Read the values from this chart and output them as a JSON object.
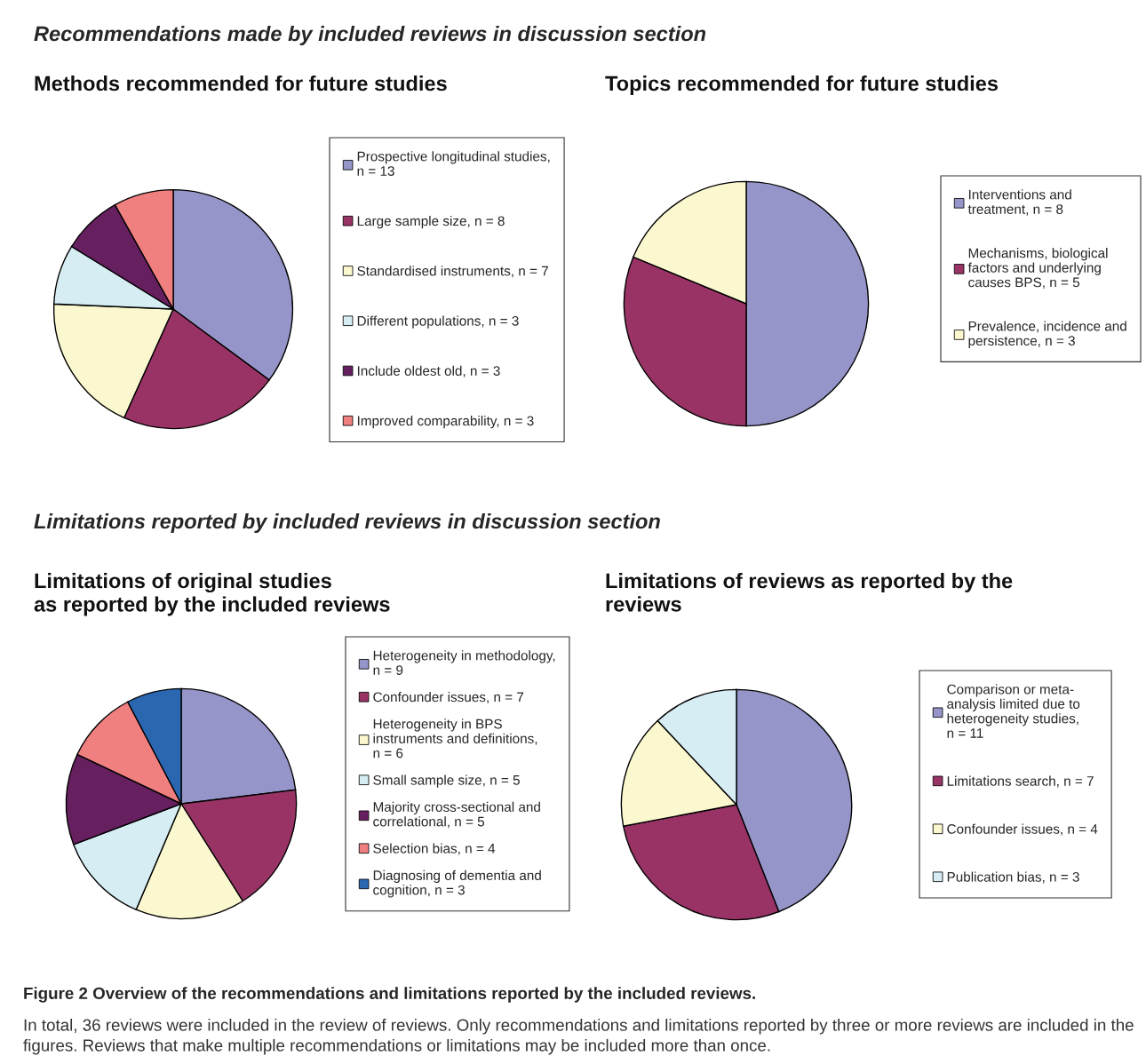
{
  "chart_data": [
    {
      "type": "pie",
      "title": "Methods recommended for future studies",
      "legend": "right",
      "annotations": [
        "Recommendations made by included reviews in discussion section"
      ],
      "categories": [
        "Prospective longitudinal studies,\nn = 13",
        "Large sample size, n = 8",
        "Standardised instruments, n = 7",
        "Different populations, n = 3",
        "Include oldest old, n = 3",
        "Improved comparability, n = 3"
      ],
      "values": [
        13,
        8,
        7,
        3,
        3,
        3
      ],
      "colors": [
        "#9595c9",
        "#993366",
        "#fbf8cf",
        "#d5edf3",
        "#661f5f",
        "#f08080"
      ]
    },
    {
      "type": "pie",
      "title": "Topics recommended for future studies",
      "legend": "right",
      "categories": [
        "Interventions and\ntreatment, n = 8",
        "Mechanisms, biological\nfactors and underlying\ncauses BPS, n = 5",
        "Prevalence, incidence and\npersistence, n = 3"
      ],
      "values": [
        8,
        5,
        3
      ],
      "colors": [
        "#9595c9",
        "#993366",
        "#fbf8cf"
      ]
    },
    {
      "type": "pie",
      "title": "Limitations of original studies\nas reported by the included reviews",
      "legend": "right",
      "annotations": [
        "Limitations reported by included reviews in discussion section"
      ],
      "categories": [
        "Heterogeneity in methodology,\nn = 9",
        "Confounder issues, n = 7",
        "Heterogeneity in BPS\ninstruments and definitions,\nn = 6",
        "Small sample size, n = 5",
        "Majority cross-sectional and\ncorrelational, n = 5",
        "Selection bias, n = 4",
        "Diagnosing of dementia and\ncognition, n = 3"
      ],
      "values": [
        9,
        7,
        6,
        5,
        5,
        4,
        3
      ],
      "colors": [
        "#9595c9",
        "#993366",
        "#fbf8cf",
        "#d5edf3",
        "#661f5f",
        "#f08080",
        "#2b66b1"
      ]
    },
    {
      "type": "pie",
      "title": "Limitations of reviews as reported by the\nreviews",
      "legend": "right",
      "annotations": [
        "Figure 2 Overview of the recommendations and limitations reported by the included reviews.",
        "In total, 36 reviews were included in the review of reviews. Only recommendations and limitations reported by three or more reviews are included in the figures. Reviews that make multiple recommendations or limitations may be included more than once."
      ],
      "categories": [
        "Comparison or meta-\nanalysis limited due to\nheterogeneity studies,\nn = 11",
        "Limitations search, n = 7",
        "Confounder issues, n = 4",
        "Publication bias, n = 3"
      ],
      "values": [
        11,
        7,
        4,
        3
      ],
      "colors": [
        "#9595c9",
        "#993366",
        "#fbf8cf",
        "#d5edf3"
      ]
    }
  ]
}
